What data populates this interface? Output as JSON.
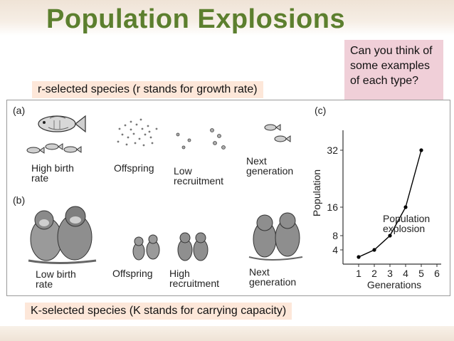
{
  "slide": {
    "title": "Population Explosions",
    "r_label": "r-selected species   (r stands for growth rate)",
    "k_label": "K-selected species   (K stands for carrying capacity)",
    "question": "Can you think of some examples of each type?"
  },
  "figure": {
    "panel_a": {
      "letter": "(a)",
      "captions": [
        "High birth\nrate",
        "Offspring",
        "Low\nrecruitment",
        "Next\ngeneration"
      ]
    },
    "panel_b": {
      "letter": "(b)",
      "captions": [
        "Low birth\nrate",
        "Offspring",
        "High\nrecruitment",
        "Next\ngeneration"
      ]
    },
    "panel_c": {
      "letter": "(c)"
    }
  },
  "chart_data": {
    "type": "line",
    "x": [
      1,
      2,
      3,
      4,
      5
    ],
    "values": [
      2,
      4,
      8,
      16,
      32
    ],
    "xlabel": "Generations",
    "ylabel": "Population",
    "x_ticks": [
      "1",
      "2",
      "3",
      "4",
      "5",
      "6"
    ],
    "y_ticks": [
      "4",
      "8",
      "16",
      "32"
    ],
    "y_tick_values": [
      4,
      8,
      16,
      32
    ],
    "xlim": [
      0,
      6
    ],
    "ylim": [
      0,
      36
    ],
    "annotation": "Population\nexplosion",
    "line_color": "#000000"
  },
  "colors": {
    "title": "#5c7f2e",
    "label_box": "#fde7d9",
    "question_box": "#f0cfd8"
  }
}
